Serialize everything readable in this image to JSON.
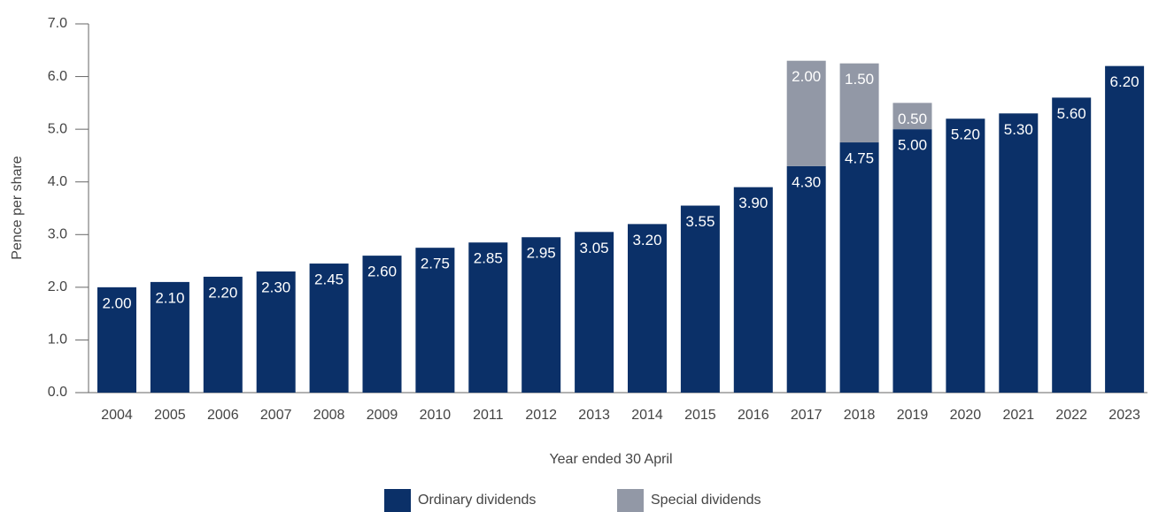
{
  "chart_data": {
    "type": "stacked_bar",
    "categories": [
      "2004",
      "2005",
      "2006",
      "2007",
      "2008",
      "2009",
      "2010",
      "2011",
      "2012",
      "2013",
      "2014",
      "2015",
      "2016",
      "2017",
      "2018",
      "2019",
      "2020",
      "2021",
      "2022",
      "2023"
    ],
    "series": [
      {
        "name": "Ordinary dividends",
        "color": "#0b3068",
        "values": [
          2.0,
          2.1,
          2.2,
          2.3,
          2.45,
          2.6,
          2.75,
          2.85,
          2.95,
          3.05,
          3.2,
          3.55,
          3.9,
          4.3,
          4.75,
          5.0,
          5.2,
          5.3,
          5.6,
          6.2
        ],
        "value_labels": [
          "2.00",
          "2.10",
          "2.20",
          "2.30",
          "2.45",
          "2.60",
          "2.75",
          "2.85",
          "2.95",
          "3.05",
          "3.20",
          "3.55",
          "3.90",
          "4.30",
          "4.75",
          "5.00",
          "5.20",
          "5.30",
          "5.60",
          "6.20"
        ]
      },
      {
        "name": "Special dividends",
        "color": "#9298a6",
        "values": [
          null,
          null,
          null,
          null,
          null,
          null,
          null,
          null,
          null,
          null,
          null,
          null,
          null,
          2.0,
          1.5,
          0.5,
          null,
          null,
          null,
          null
        ],
        "value_labels": [
          null,
          null,
          null,
          null,
          null,
          null,
          null,
          null,
          null,
          null,
          null,
          null,
          null,
          "2.00",
          "1.50",
          "0.50",
          null,
          null,
          null,
          null
        ]
      }
    ],
    "x_label": "Year ended 30 April",
    "y_label": "Pence per share",
    "ylim": [
      0,
      7
    ],
    "yticks": [
      {
        "value": 0,
        "label": "0.0"
      },
      {
        "value": 1,
        "label": "1.0"
      },
      {
        "value": 2,
        "label": "2.0"
      },
      {
        "value": 3,
        "label": "3.0"
      },
      {
        "value": 4,
        "label": "4.0"
      },
      {
        "value": 5,
        "label": "5.0"
      },
      {
        "value": 6,
        "label": "6.0"
      },
      {
        "value": 7,
        "label": "7.0"
      }
    ],
    "grid": false,
    "legend": "bottom"
  }
}
